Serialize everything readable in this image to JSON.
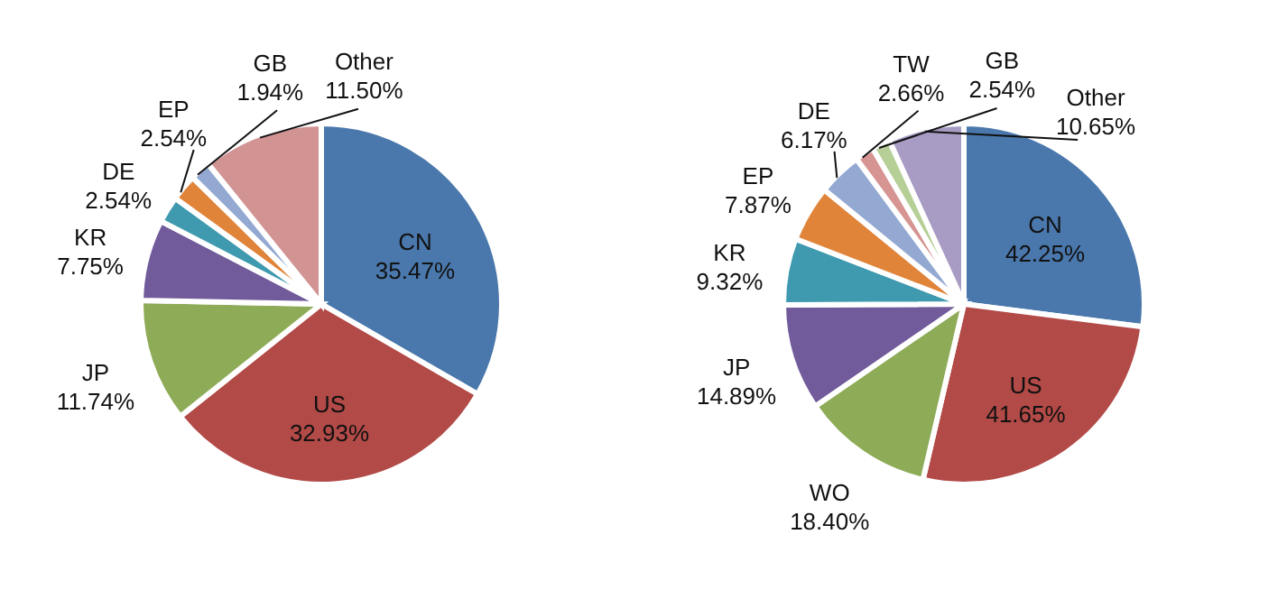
{
  "chart_data": [
    {
      "type": "pie",
      "categories": [
        "CN",
        "US",
        "JP",
        "KR",
        "DE",
        "EP",
        "GB",
        "Other"
      ],
      "values": [
        35.47,
        32.93,
        11.74,
        7.75,
        2.54,
        2.54,
        1.94,
        11.5
      ],
      "value_labels": [
        "35.47%",
        "32.93%",
        "11.74%",
        "7.75%",
        "2.54%",
        "2.54%",
        "1.94%",
        "11.50%"
      ],
      "colors": [
        "#4a78ac",
        "#b24a47",
        "#8eab57",
        "#715b9b",
        "#3f9aaf",
        "#e0843a",
        "#93a9d2",
        "#d29393"
      ]
    },
    {
      "type": "pie",
      "categories": [
        "CN",
        "US",
        "WO",
        "JP",
        "KR",
        "EP",
        "DE",
        "TW",
        "GB",
        "Other"
      ],
      "values": [
        42.25,
        41.65,
        18.4,
        14.89,
        9.32,
        7.87,
        6.17,
        2.66,
        2.54,
        10.65
      ],
      "value_labels": [
        "42.25%",
        "41.65%",
        "18.40%",
        "14.89%",
        "9.32%",
        "7.87%",
        "6.17%",
        "2.66%",
        "2.54%",
        "10.65%"
      ],
      "colors": [
        "#4a78ac",
        "#b24a47",
        "#8eab57",
        "#715b9b",
        "#3f9aaf",
        "#e0843a",
        "#93a9d2",
        "#d69592",
        "#b5cf96",
        "#a89cc4"
      ]
    }
  ]
}
